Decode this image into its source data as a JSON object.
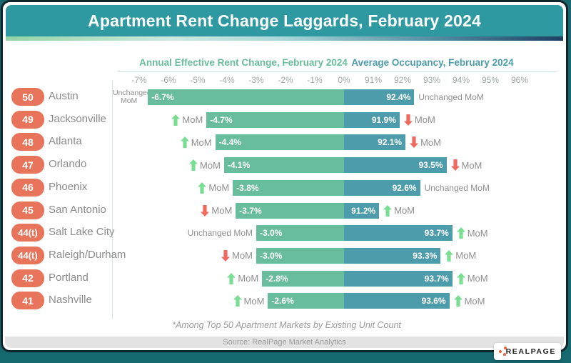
{
  "title": "Apartment Rent Change Laggards, February 2024",
  "column_headers": {
    "rent": "Annual Effective Rent Change, February 2024",
    "occupancy": "Average Occupancy, February 2024"
  },
  "axis_ticks": [
    "-7%",
    "-6%",
    "-5%",
    "-4%",
    "-3%",
    "-2%",
    "-1%",
    "0%",
    "91%",
    "92%",
    "93%",
    "94%",
    "95%",
    "96%"
  ],
  "mom_labels": {
    "changed": "MoM",
    "unchanged": "Unchanged MoM"
  },
  "footnote": "*Among Top 50 Apartment Markets by Existing Unit Count",
  "source": "Source: RealPage Market Analytics",
  "logo_text": "REALPAGE",
  "colors": {
    "page_bg": "#15686d",
    "card_border": "#10242c",
    "header_bg": "#2f99a1",
    "rent_bar": "#68bd9c",
    "occupancy_bar": "#4c9cab",
    "badge_bg": "#e8755b",
    "arrow_up": "#7ade92",
    "arrow_down": "#f0685e",
    "logo_orange": "#e8663c"
  },
  "rows": [
    {
      "rank": "50",
      "city": "Austin",
      "rent_label": "-6.7%",
      "rent_mom": "unchanged",
      "occ_label": "92.4%",
      "occ_mom": "unchanged"
    },
    {
      "rank": "49",
      "city": "Jacksonville",
      "rent_label": "-4.7%",
      "rent_mom": "up",
      "occ_label": "91.9%",
      "occ_mom": "down"
    },
    {
      "rank": "48",
      "city": "Atlanta",
      "rent_label": "-4.4%",
      "rent_mom": "up",
      "occ_label": "92.1%",
      "occ_mom": "down"
    },
    {
      "rank": "47",
      "city": "Orlando",
      "rent_label": "-4.1%",
      "rent_mom": "up",
      "occ_label": "93.5%",
      "occ_mom": "down"
    },
    {
      "rank": "46",
      "city": "Phoenix",
      "rent_label": "-3.8%",
      "rent_mom": "up",
      "occ_label": "92.6%",
      "occ_mom": "unchanged"
    },
    {
      "rank": "45",
      "city": "San Antonio",
      "rent_label": "-3.7%",
      "rent_mom": "down",
      "occ_label": "91.2%",
      "occ_mom": "up"
    },
    {
      "rank": "44(t)",
      "city": "Salt Lake City",
      "rent_label": "-3.0%",
      "rent_mom": "unchanged",
      "occ_label": "93.7%",
      "occ_mom": "up"
    },
    {
      "rank": "44(t)",
      "city": "Raleigh/Durham",
      "rent_label": "-3.0%",
      "rent_mom": "down",
      "occ_label": "93.3%",
      "occ_mom": "up"
    },
    {
      "rank": "42",
      "city": "Portland",
      "rent_label": "-2.8%",
      "rent_mom": "up",
      "occ_label": "93.7%",
      "occ_mom": "up"
    },
    {
      "rank": "41",
      "city": "Nashville",
      "rent_label": "-2.6%",
      "rent_mom": "up",
      "occ_label": "93.6%",
      "occ_mom": "up"
    }
  ],
  "chart_data": {
    "type": "bar",
    "title": "Apartment Rent Change Laggards, February 2024",
    "orientation": "horizontal-diverging-dual-axis",
    "categories": [
      "Austin",
      "Jacksonville",
      "Atlanta",
      "Orlando",
      "Phoenix",
      "San Antonio",
      "Salt Lake City",
      "Raleigh/Durham",
      "Portland",
      "Nashville"
    ],
    "ranks": [
      "50",
      "49",
      "48",
      "47",
      "46",
      "45",
      "44(t)",
      "44(t)",
      "42",
      "41"
    ],
    "series": [
      {
        "name": "Annual Effective Rent Change, February 2024",
        "values": [
          -6.7,
          -4.7,
          -4.4,
          -4.1,
          -3.8,
          -3.7,
          -3.0,
          -3.0,
          -2.8,
          -2.6
        ],
        "mom_direction": [
          "unchanged",
          "up",
          "up",
          "up",
          "up",
          "down",
          "unchanged",
          "down",
          "up",
          "up"
        ],
        "axis_range": [
          -7,
          0
        ],
        "unit": "%"
      },
      {
        "name": "Average Occupancy, February 2024",
        "values": [
          92.4,
          91.9,
          92.1,
          93.5,
          92.6,
          91.2,
          93.7,
          93.3,
          93.7,
          93.6
        ],
        "mom_direction": [
          "unchanged",
          "down",
          "down",
          "down",
          "unchanged",
          "up",
          "up",
          "up",
          "up",
          "up"
        ],
        "axis_range": [
          90,
          96
        ],
        "unit": "%"
      }
    ],
    "x_tick_labels": [
      "-7%",
      "-6%",
      "-5%",
      "-4%",
      "-3%",
      "-2%",
      "-1%",
      "0%",
      "91%",
      "92%",
      "93%",
      "94%",
      "95%",
      "96%"
    ],
    "grid": false,
    "legend_position": "top-as-column-headers",
    "footnote": "*Among Top 50 Apartment Markets by Existing Unit Count",
    "source": "Source: RealPage Market Analytics"
  }
}
